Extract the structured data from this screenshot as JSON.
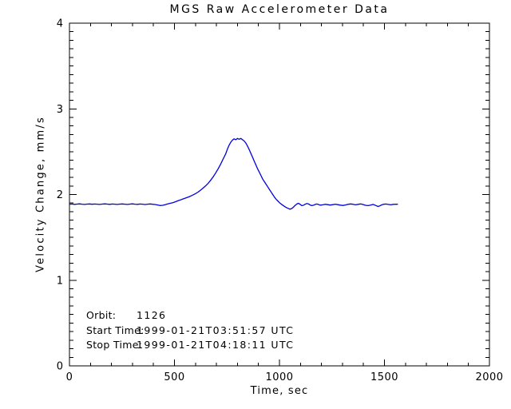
{
  "chart_data": {
    "type": "line",
    "title": "MGS Raw Accelerometer Data",
    "xlabel": "Time, sec",
    "ylabel": "Velocity Change, mm/s",
    "xlim": [
      0,
      2000
    ],
    "ylim": [
      0,
      4
    ],
    "x_major_ticks": [
      0,
      500,
      1000,
      1500,
      2000
    ],
    "x_tick_labels": [
      "0",
      "500",
      "1000",
      "1500",
      "2000"
    ],
    "x_minor_step": 100,
    "y_major_ticks": [
      0,
      1,
      2,
      3,
      4
    ],
    "y_tick_labels": [
      "0",
      "1",
      "2",
      "3",
      "4"
    ],
    "y_minor_step": 0.1,
    "grid": false,
    "legend": "none",
    "colors": {
      "line": "#0000dd",
      "axis": "#000000",
      "background": "#ffffff"
    },
    "annotations": [
      {
        "label": "Orbit:",
        "value": "1126"
      },
      {
        "label": "Start Time:",
        "value": "1999-01-21T03:51:57 UTC"
      },
      {
        "label": "Stop Time:",
        "value": "1999-01-21T04:18:11 UTC"
      }
    ],
    "series": [
      {
        "name": "velocity-change",
        "points": [
          [
            0,
            1.887
          ],
          [
            12,
            1.889
          ],
          [
            24,
            1.885
          ],
          [
            36,
            1.888
          ],
          [
            48,
            1.891
          ],
          [
            60,
            1.887
          ],
          [
            72,
            1.884
          ],
          [
            84,
            1.888
          ],
          [
            96,
            1.89
          ],
          [
            108,
            1.886
          ],
          [
            120,
            1.889
          ],
          [
            132,
            1.887
          ],
          [
            144,
            1.884
          ],
          [
            156,
            1.888
          ],
          [
            168,
            1.891
          ],
          [
            180,
            1.888
          ],
          [
            192,
            1.885
          ],
          [
            204,
            1.889
          ],
          [
            216,
            1.887
          ],
          [
            228,
            1.884
          ],
          [
            240,
            1.888
          ],
          [
            252,
            1.89
          ],
          [
            264,
            1.887
          ],
          [
            276,
            1.884
          ],
          [
            288,
            1.888
          ],
          [
            300,
            1.891
          ],
          [
            312,
            1.887
          ],
          [
            324,
            1.885
          ],
          [
            336,
            1.889
          ],
          [
            348,
            1.887
          ],
          [
            360,
            1.883
          ],
          [
            372,
            1.887
          ],
          [
            384,
            1.89
          ],
          [
            396,
            1.886
          ],
          [
            408,
            1.883
          ],
          [
            420,
            1.878
          ],
          [
            432,
            1.871
          ],
          [
            444,
            1.874
          ],
          [
            456,
            1.882
          ],
          [
            468,
            1.89
          ],
          [
            480,
            1.897
          ],
          [
            492,
            1.905
          ],
          [
            504,
            1.915
          ],
          [
            516,
            1.926
          ],
          [
            528,
            1.937
          ],
          [
            540,
            1.948
          ],
          [
            552,
            1.958
          ],
          [
            564,
            1.968
          ],
          [
            576,
            1.98
          ],
          [
            588,
            1.994
          ],
          [
            600,
            2.01
          ],
          [
            612,
            2.028
          ],
          [
            624,
            2.05
          ],
          [
            636,
            2.075
          ],
          [
            648,
            2.1
          ],
          [
            660,
            2.13
          ],
          [
            672,
            2.165
          ],
          [
            684,
            2.205
          ],
          [
            696,
            2.25
          ],
          [
            708,
            2.3
          ],
          [
            720,
            2.355
          ],
          [
            732,
            2.415
          ],
          [
            744,
            2.475
          ],
          [
            752,
            2.53
          ],
          [
            760,
            2.575
          ],
          [
            768,
            2.61
          ],
          [
            776,
            2.635
          ],
          [
            784,
            2.65
          ],
          [
            792,
            2.64
          ],
          [
            800,
            2.655
          ],
          [
            808,
            2.645
          ],
          [
            816,
            2.655
          ],
          [
            824,
            2.64
          ],
          [
            832,
            2.625
          ],
          [
            840,
            2.6
          ],
          [
            848,
            2.565
          ],
          [
            856,
            2.525
          ],
          [
            864,
            2.48
          ],
          [
            872,
            2.435
          ],
          [
            880,
            2.39
          ],
          [
            888,
            2.345
          ],
          [
            896,
            2.3
          ],
          [
            904,
            2.26
          ],
          [
            912,
            2.22
          ],
          [
            920,
            2.18
          ],
          [
            928,
            2.15
          ],
          [
            936,
            2.12
          ],
          [
            944,
            2.09
          ],
          [
            952,
            2.06
          ],
          [
            960,
            2.03
          ],
          [
            968,
            2.0
          ],
          [
            976,
            1.97
          ],
          [
            984,
            1.945
          ],
          [
            992,
            1.925
          ],
          [
            1000,
            1.905
          ],
          [
            1010,
            1.885
          ],
          [
            1020,
            1.868
          ],
          [
            1030,
            1.852
          ],
          [
            1040,
            1.84
          ],
          [
            1050,
            1.828
          ],
          [
            1058,
            1.836
          ],
          [
            1066,
            1.852
          ],
          [
            1074,
            1.872
          ],
          [
            1082,
            1.888
          ],
          [
            1090,
            1.897
          ],
          [
            1098,
            1.886
          ],
          [
            1106,
            1.87
          ],
          [
            1114,
            1.874
          ],
          [
            1122,
            1.886
          ],
          [
            1130,
            1.895
          ],
          [
            1138,
            1.89
          ],
          [
            1146,
            1.878
          ],
          [
            1154,
            1.87
          ],
          [
            1162,
            1.875
          ],
          [
            1170,
            1.884
          ],
          [
            1178,
            1.889
          ],
          [
            1186,
            1.883
          ],
          [
            1194,
            1.876
          ],
          [
            1206,
            1.88
          ],
          [
            1218,
            1.886
          ],
          [
            1230,
            1.882
          ],
          [
            1242,
            1.877
          ],
          [
            1254,
            1.882
          ],
          [
            1266,
            1.887
          ],
          [
            1278,
            1.882
          ],
          [
            1290,
            1.876
          ],
          [
            1302,
            1.872
          ],
          [
            1314,
            1.878
          ],
          [
            1326,
            1.885
          ],
          [
            1338,
            1.89
          ],
          [
            1350,
            1.886
          ],
          [
            1362,
            1.88
          ],
          [
            1374,
            1.885
          ],
          [
            1386,
            1.89
          ],
          [
            1398,
            1.883
          ],
          [
            1410,
            1.874
          ],
          [
            1422,
            1.87
          ],
          [
            1434,
            1.877
          ],
          [
            1446,
            1.884
          ],
          [
            1458,
            1.872
          ],
          [
            1470,
            1.86
          ],
          [
            1478,
            1.868
          ],
          [
            1486,
            1.878
          ],
          [
            1494,
            1.885
          ],
          [
            1506,
            1.889
          ],
          [
            1518,
            1.884
          ],
          [
            1530,
            1.88
          ],
          [
            1542,
            1.885
          ],
          [
            1554,
            1.887
          ],
          [
            1562,
            1.886
          ]
        ]
      }
    ]
  }
}
